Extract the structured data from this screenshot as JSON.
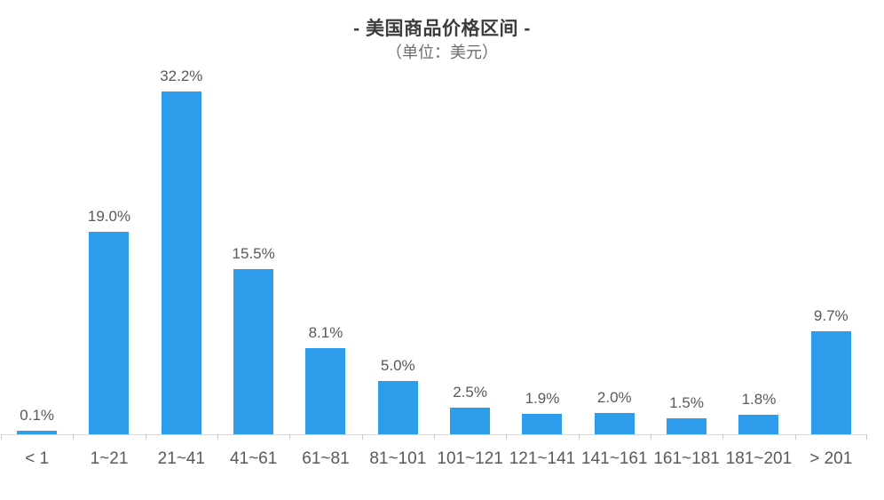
{
  "chart_data": {
    "type": "bar",
    "title": "- 美国商品价格区间 -",
    "subtitle": "（单位：美元）",
    "categories": [
      "< 1",
      "1~21",
      "21~41",
      "41~61",
      "61~81",
      "81~101",
      "101~121",
      "121~141",
      "141~161",
      "161~181",
      "181~201",
      "> 201"
    ],
    "values": [
      0.1,
      19.0,
      32.2,
      15.5,
      8.1,
      5.0,
      2.5,
      1.9,
      2.0,
      1.5,
      1.8,
      9.7
    ],
    "value_labels": [
      "0.1%",
      "19.0%",
      "32.2%",
      "15.5%",
      "8.1%",
      "5.0%",
      "2.5%",
      "1.9%",
      "2.0%",
      "1.5%",
      "1.8%",
      "9.7%"
    ],
    "xlabel": "",
    "ylabel": "",
    "ylim": [
      0,
      34
    ],
    "grid": false,
    "legend": false,
    "bar_color": "#2D9CEB",
    "axis_color": "#D8D8D8",
    "tick_color": "#C9C9C9",
    "value_label_color": "#595959",
    "category_label_color": "#595959",
    "title_color": "#3C3C3C",
    "subtitle_color": "#6E6E6E",
    "background_color": "#FFFFFF"
  }
}
